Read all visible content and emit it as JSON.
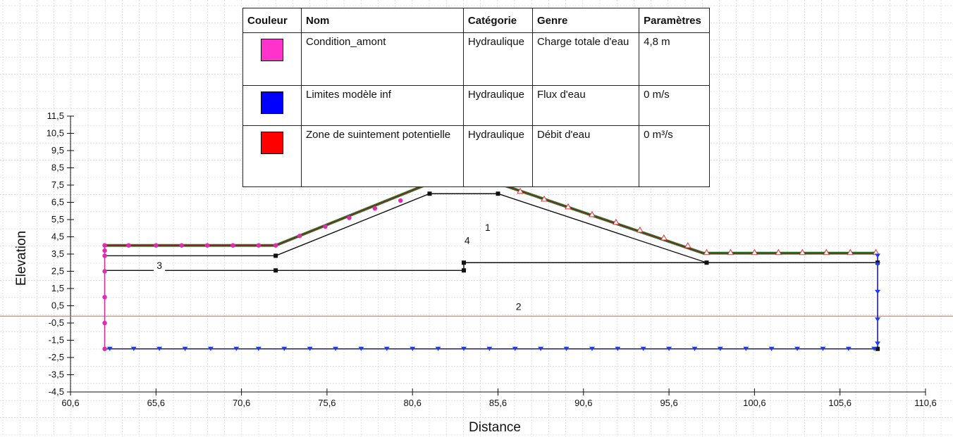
{
  "legend": {
    "headers": [
      "Couleur",
      "Nom",
      "Catégorie",
      "Genre",
      "Paramètres"
    ],
    "rows": [
      {
        "color": "#ff33cc",
        "name": "Condition_amont",
        "category": "Hydraulique",
        "kind": "Charge totale d'eau",
        "param": "4,8 m"
      },
      {
        "color": "#0000ff",
        "name": "Limites modèle inf",
        "category": "Hydraulique",
        "kind": "Flux d'eau",
        "param": "0 m/s"
      },
      {
        "color": "#ff0000",
        "name": "Zone de suintement potentielle",
        "category": "Hydraulique",
        "kind": "Débit d'eau",
        "param": "0 m³/s"
      }
    ]
  },
  "chart_data": {
    "type": "diagram",
    "xlabel": "Distance",
    "ylabel": "Elevation",
    "x_ticks": [
      "60,6",
      "65,6",
      "70,6",
      "75,6",
      "80,6",
      "85,6",
      "90,6",
      "95,6",
      "100,6",
      "105,6",
      "110,6"
    ],
    "y_ticks": [
      "11,5",
      "10,5",
      "9,5",
      "8,5",
      "7,5",
      "6,5",
      "5,5",
      "4,5",
      "3,5",
      "2,5",
      "1,5",
      "0,5",
      "-0,5",
      "-1,5",
      "-2,5",
      "-3,5",
      "-4,5"
    ],
    "xlim": [
      60.6,
      110.6
    ],
    "ylim": [
      -4.5,
      11.5
    ],
    "grid": true,
    "region_labels": [
      {
        "text": "1",
        "x": 85.0,
        "y": 4.85
      },
      {
        "text": "2",
        "x": 86.8,
        "y": 0.25
      },
      {
        "text": "3",
        "x": 65.8,
        "y": 2.65
      },
      {
        "text": "4",
        "x": 83.8,
        "y": 4.1
      }
    ],
    "water_line_y": -0.1,
    "outer_profile": [
      [
        62.6,
        4.0
      ],
      [
        72.6,
        4.0
      ],
      [
        81.6,
        7.6
      ],
      [
        85.6,
        7.6
      ],
      [
        97.6,
        3.55
      ],
      [
        107.8,
        3.55
      ]
    ],
    "inner_crest": [
      [
        72.6,
        3.4
      ],
      [
        81.6,
        7.0
      ],
      [
        85.6,
        7.0
      ],
      [
        97.8,
        3.0
      ]
    ],
    "layer_lines": [
      [
        [
          62.6,
          3.4
        ],
        [
          72.6,
          3.4
        ]
      ],
      [
        [
          62.6,
          2.55
        ],
        [
          72.6,
          2.55
        ],
        [
          83.6,
          2.55
        ]
      ],
      [
        [
          83.6,
          2.55
        ],
        [
          83.6,
          3.0
        ],
        [
          107.8,
          3.0
        ]
      ]
    ],
    "vertices": [
      [
        72.6,
        3.4
      ],
      [
        72.6,
        2.55
      ],
      [
        83.6,
        2.55
      ],
      [
        83.6,
        3.0
      ],
      [
        81.6,
        7.0
      ],
      [
        85.6,
        7.0
      ],
      [
        97.8,
        3.0
      ],
      [
        107.8,
        3.0
      ],
      [
        107.8,
        -2.0
      ]
    ],
    "upstream_points": [
      [
        62.6,
        4.0
      ],
      [
        62.6,
        3.7
      ],
      [
        62.6,
        3.4
      ],
      [
        62.6,
        2.5
      ],
      [
        62.6,
        1.0
      ],
      [
        62.6,
        -0.5
      ],
      [
        62.6,
        -2.0
      ],
      [
        64.0,
        4.0
      ],
      [
        65.6,
        4.0
      ],
      [
        67.1,
        4.0
      ],
      [
        68.6,
        4.0
      ],
      [
        70.1,
        4.0
      ],
      [
        71.6,
        4.0
      ],
      [
        72.6,
        4.0
      ],
      [
        74.0,
        4.55
      ],
      [
        75.5,
        5.1
      ],
      [
        76.9,
        5.6
      ],
      [
        78.4,
        6.15
      ],
      [
        79.9,
        6.6
      ],
      [
        81.6,
        7.6
      ],
      [
        83.6,
        7.6
      ]
    ],
    "seepage_points": [
      [
        83.6,
        7.6
      ],
      [
        85.6,
        7.6
      ],
      [
        86.9,
        7.1
      ],
      [
        88.3,
        6.65
      ],
      [
        89.7,
        6.2
      ],
      [
        91.1,
        5.75
      ],
      [
        92.5,
        5.3
      ],
      [
        93.9,
        4.85
      ],
      [
        95.3,
        4.4
      ],
      [
        96.7,
        3.95
      ],
      [
        97.8,
        3.55
      ],
      [
        99.2,
        3.55
      ],
      [
        100.6,
        3.55
      ],
      [
        102.0,
        3.55
      ],
      [
        103.4,
        3.55
      ],
      [
        104.8,
        3.55
      ],
      [
        106.2,
        3.55
      ],
      [
        107.7,
        3.55
      ]
    ],
    "bottom_points": [
      62.9,
      64.3,
      65.8,
      67.3,
      68.8,
      70.3,
      71.6,
      73.1,
      74.6,
      76.1,
      77.6,
      79.1,
      80.6,
      82.1,
      83.6,
      85.1,
      86.6,
      88.1,
      89.6,
      91.1,
      92.6,
      94.1,
      95.6,
      97.1,
      98.6,
      100.1,
      101.6,
      103.1,
      104.6,
      106.1,
      107.6
    ],
    "right_points": [
      3.4,
      2.9,
      1.3,
      -0.3,
      -1.7
    ]
  }
}
